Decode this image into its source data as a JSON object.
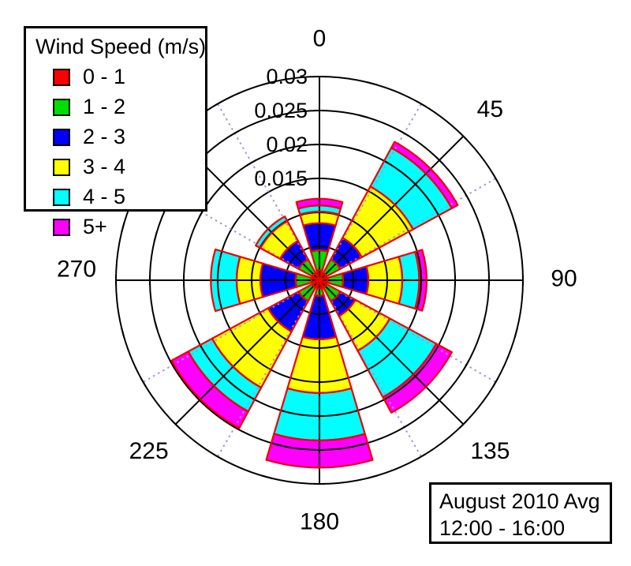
{
  "legend": {
    "title": "Wind Speed (m/s)",
    "items": [
      {
        "label": "0 - 1",
        "color": "#ff0000"
      },
      {
        "label": "1 - 2",
        "color": "#00dd00"
      },
      {
        "label": "2 - 3",
        "color": "#0000ff"
      },
      {
        "label": "3 - 4",
        "color": "#ffff00"
      },
      {
        "label": "4 - 5",
        "color": "#00ffff"
      },
      {
        "label": "5+",
        "color": "#ff00ff"
      }
    ]
  },
  "note": {
    "line1": "August 2010 Avg",
    "line2": "12:00 - 16:00"
  },
  "chart_data": {
    "type": "bar",
    "subtype": "wind-rose polar stacked bars",
    "title": "August 2010 Avg 12:00 - 16:00",
    "directions_deg": [
      0,
      45,
      90,
      135,
      180,
      225,
      270,
      315
    ],
    "direction_labels": [
      {
        "text": "0",
        "angle": 0
      },
      {
        "text": "45",
        "angle": 45
      },
      {
        "text": "90",
        "angle": 90
      },
      {
        "text": "135",
        "angle": 135
      },
      {
        "text": "180",
        "angle": 180
      },
      {
        "text": "225",
        "angle": 225
      },
      {
        "text": "270",
        "angle": 270
      }
    ],
    "series": [
      {
        "name": "0 - 1",
        "color": "#ff0000",
        "values": [
          0.0015,
          0.0012,
          0.0012,
          0.0012,
          0.0012,
          0.0012,
          0.0012,
          0.0012
        ]
      },
      {
        "name": "1 - 2",
        "color": "#00dd00",
        "values": [
          0.0029,
          0.0023,
          0.0023,
          0.0023,
          0.0011,
          0.0023,
          0.0023,
          0.0023
        ]
      },
      {
        "name": "2 - 3",
        "color": "#0000ff",
        "values": [
          0.004,
          0.0036,
          0.0037,
          0.0025,
          0.0064,
          0.0051,
          0.0052,
          0.0031
        ]
      },
      {
        "name": "3 - 4",
        "color": "#ffff00",
        "values": [
          0.0017,
          0.0086,
          0.005,
          0.0058,
          0.0079,
          0.0094,
          0.0035,
          0.0033
        ]
      },
      {
        "name": "4 - 5",
        "color": "#00ffff",
        "values": [
          0.0009,
          0.0065,
          0.0025,
          0.0078,
          0.007,
          0.004,
          0.0038,
          0.0008
        ]
      },
      {
        "name": "5+",
        "color": "#ff00ff",
        "values": [
          0.001,
          0.001,
          0.0011,
          0.0026,
          0.004,
          0.0028,
          0.0,
          0.0
        ]
      }
    ],
    "r_axis": {
      "tick_labels": [
        {
          "text": "0.015",
          "value": 0.015
        },
        {
          "text": "0.02",
          "value": 0.02
        },
        {
          "text": "0.025",
          "value": 0.025
        },
        {
          "text": "0.03",
          "value": 0.03
        }
      ],
      "ring_step": 0.005,
      "max": 0.03
    },
    "style": {
      "wedge_outline_color": "#ee0000",
      "grid_color": "#000000",
      "dotted_ray_color": "#9a9ade",
      "dotted_rays_deg": [
        30,
        60,
        120,
        150,
        210,
        240,
        300,
        330
      ]
    },
    "legend_position": "top-left",
    "grid": true
  }
}
